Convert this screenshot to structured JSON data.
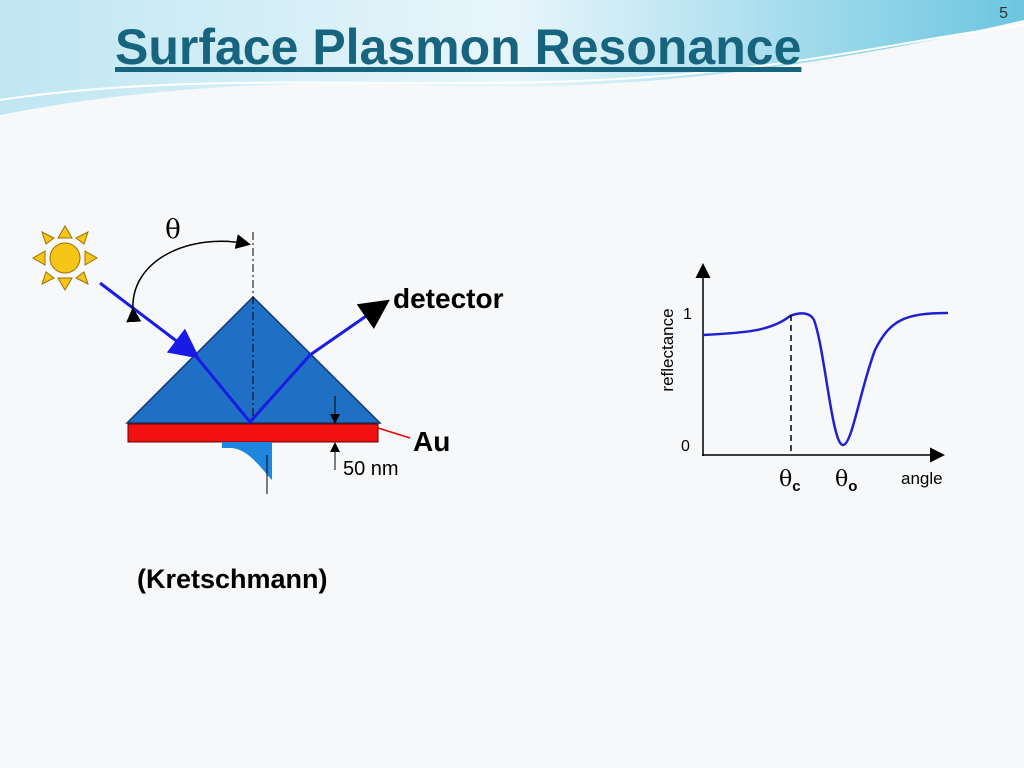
{
  "slide_number": "5",
  "title": "Surface Plasmon Resonance",
  "diagram": {
    "theta": "θ",
    "detector": "detector",
    "au": "Au",
    "thickness": "50 nm",
    "caption": "(Kretschmann)"
  },
  "plot": {
    "y_label": "reflectance",
    "y_top": "1",
    "y_bottom": "0",
    "theta_c": {
      "symbol": "θ",
      "sub": "c"
    },
    "theta_o": {
      "symbol": "θ",
      "sub": "o"
    },
    "x_label": "angle"
  }
}
